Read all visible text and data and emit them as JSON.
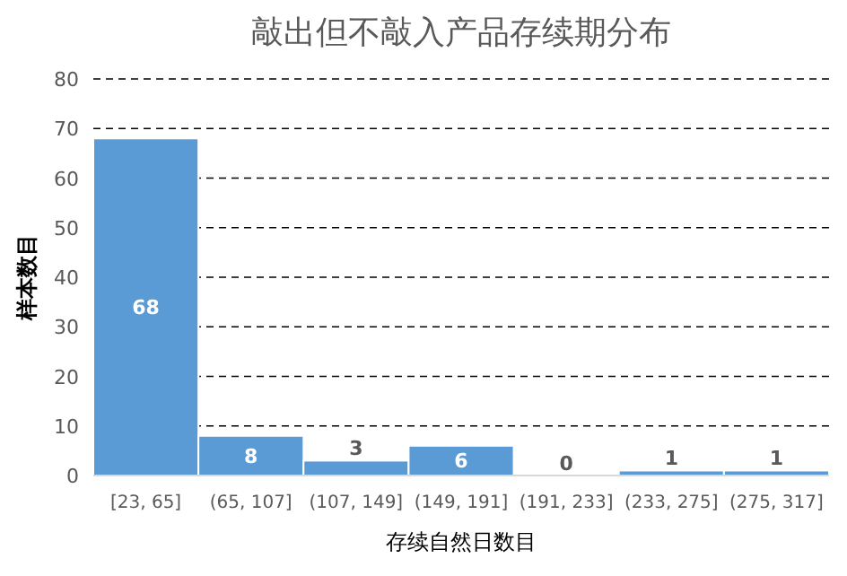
{
  "chart_data": {
    "type": "bar",
    "title": "敲出但不敲入产品存续期分布",
    "xlabel": "存续自然日数目",
    "ylabel": "样本数目",
    "categories": [
      "[23, 65]",
      "(65, 107]",
      "(107, 149]",
      "(149, 191]",
      "(191, 233]",
      "(233, 275]",
      "(275, 317]"
    ],
    "values": [
      68,
      8,
      3,
      6,
      0,
      1,
      1
    ],
    "color": "#5b9bd5",
    "ylim": [
      0,
      80
    ],
    "yticks": [
      0,
      10,
      20,
      30,
      40,
      50,
      60,
      70,
      80
    ],
    "grid": "y",
    "data_labels": true
  }
}
